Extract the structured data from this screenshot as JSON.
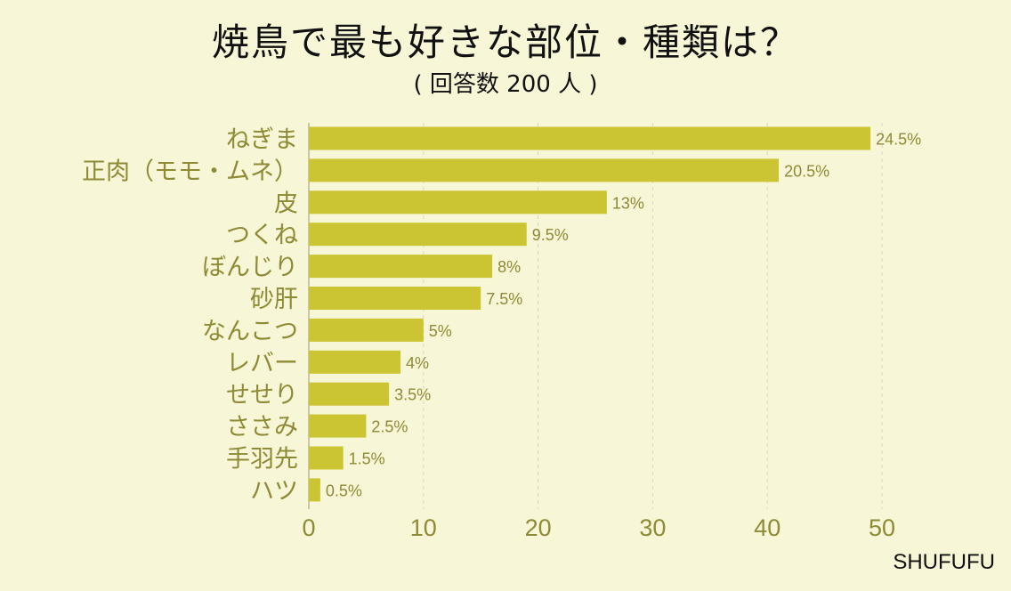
{
  "header": {
    "title": "焼鳥で最も好きな部位・種類は？",
    "subtitle": "( 回答数 200 人 )"
  },
  "brand": "SHUFUFU",
  "colors": {
    "background": "#f7f6d6",
    "bar": "#cbc433",
    "axis_text": "#8e8a35",
    "grid": "#d8d7c4"
  },
  "chart_data": {
    "type": "bar",
    "orientation": "horizontal",
    "title": "焼鳥で最も好きな部位・種類は？",
    "subtitle": "( 回答数 200 人 )",
    "categories": [
      "ねぎま",
      "正肉（モモ・ムネ）",
      "皮",
      "つくね",
      "ぼんじり",
      "砂肝",
      "なんこつ",
      "レバー",
      "せせり",
      "ささみ",
      "手羽先",
      "ハツ"
    ],
    "values": [
      49,
      41,
      26,
      19,
      16,
      15,
      10,
      8,
      7,
      5,
      3,
      1
    ],
    "percent_labels": [
      "24.5%",
      "20.5%",
      "13%",
      "9.5%",
      "8%",
      "7.5%",
      "5%",
      "4%",
      "3.5%",
      "2.5%",
      "1.5%",
      "0.5%"
    ],
    "xlim": [
      0,
      50
    ],
    "xticks": [
      0,
      10,
      20,
      30,
      40,
      50
    ],
    "xlabel": "",
    "ylabel": "",
    "grid": true
  }
}
